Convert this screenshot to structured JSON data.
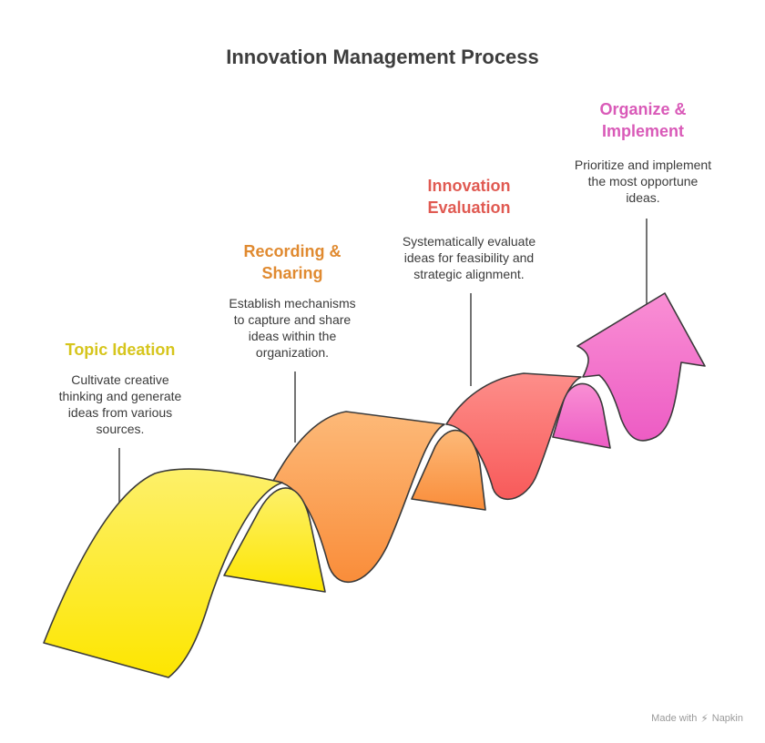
{
  "title": "Innovation Management Process",
  "steps": [
    {
      "title": "Topic Ideation",
      "description": "Cultivate creative\nthinking and generate\nideas from various\nsources.",
      "color": "#d6c51c"
    },
    {
      "title": "Recording &\nSharing",
      "description": "Establish mechanisms\nto capture and share\nideas within the\norganization.",
      "color": "#e08a30"
    },
    {
      "title": "Innovation\nEvaluation",
      "description": "Systematically evaluate\nideas for feasibility and\nstrategic alignment.",
      "color": "#e05a52"
    },
    {
      "title": "Organize &\nImplement",
      "description": "Prioritize and implement\nthe most opportune\nideas.",
      "color": "#d95ab8"
    }
  ],
  "footer": {
    "made_with": "Made with",
    "brand": "Napkin",
    "icon": "napkin-logo-icon"
  }
}
